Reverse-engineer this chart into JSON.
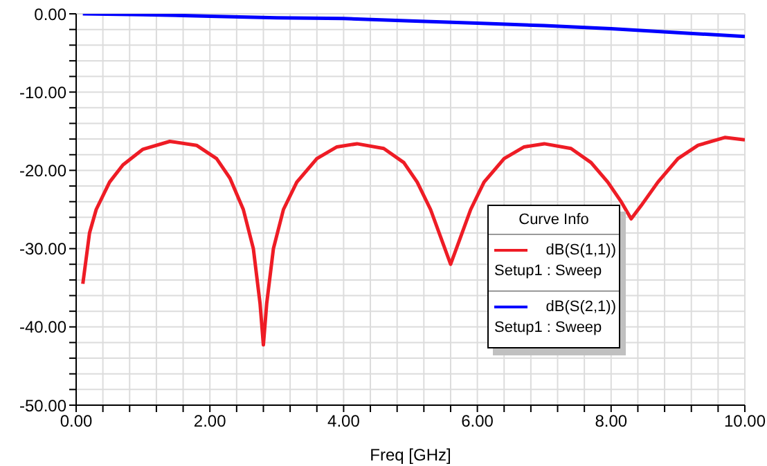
{
  "chart_data": {
    "type": "line",
    "xlabel": "Freq [GHz]",
    "legend_title": "Curve Info",
    "legend": "bottom right",
    "grid": true,
    "marker": "none",
    "line_style": "solid",
    "xlim": [
      0,
      10
    ],
    "ylim": [
      -50,
      0
    ],
    "xticks": [
      {
        "value": 0,
        "label": "0.00"
      },
      {
        "value": 0.4,
        "label": null
      },
      {
        "value": 0.8,
        "label": null
      },
      {
        "value": 1.2,
        "label": null
      },
      {
        "value": 1.6,
        "label": null
      },
      {
        "value": 2,
        "label": "2.00"
      },
      {
        "value": 2.4,
        "label": null
      },
      {
        "value": 2.8,
        "label": null
      },
      {
        "value": 3.2,
        "label": null
      },
      {
        "value": 3.6,
        "label": null
      },
      {
        "value": 4,
        "label": "4.00"
      },
      {
        "value": 4.4,
        "label": null
      },
      {
        "value": 4.8,
        "label": null
      },
      {
        "value": 5.2,
        "label": null
      },
      {
        "value": 5.6,
        "label": null
      },
      {
        "value": 6,
        "label": "6.00"
      },
      {
        "value": 6.4,
        "label": null
      },
      {
        "value": 6.8,
        "label": null
      },
      {
        "value": 7.2,
        "label": null
      },
      {
        "value": 7.6,
        "label": null
      },
      {
        "value": 8,
        "label": "8.00"
      },
      {
        "value": 8.4,
        "label": null
      },
      {
        "value": 8.8,
        "label": null
      },
      {
        "value": 9.2,
        "label": null
      },
      {
        "value": 9.6,
        "label": null
      },
      {
        "value": 10,
        "label": "10.00"
      }
    ],
    "yticks": [
      {
        "value": -50,
        "label": "-50.00"
      },
      {
        "value": -48,
        "label": null
      },
      {
        "value": -46,
        "label": null
      },
      {
        "value": -44,
        "label": null
      },
      {
        "value": -42,
        "label": null
      },
      {
        "value": -40,
        "label": "-40.00"
      },
      {
        "value": -38,
        "label": null
      },
      {
        "value": -36,
        "label": null
      },
      {
        "value": -34,
        "label": null
      },
      {
        "value": -32,
        "label": null
      },
      {
        "value": -30,
        "label": "-30.00"
      },
      {
        "value": -28,
        "label": null
      },
      {
        "value": -26,
        "label": null
      },
      {
        "value": -24,
        "label": null
      },
      {
        "value": -22,
        "label": null
      },
      {
        "value": -20,
        "label": "-20.00"
      },
      {
        "value": -18,
        "label": null
      },
      {
        "value": -16,
        "label": null
      },
      {
        "value": -14,
        "label": null
      },
      {
        "value": -12,
        "label": null
      },
      {
        "value": -10,
        "label": "-10.00"
      },
      {
        "value": -8,
        "label": null
      },
      {
        "value": -6,
        "label": null
      },
      {
        "value": -4,
        "label": null
      },
      {
        "value": -2,
        "label": null
      },
      {
        "value": 0,
        "label": "0.00"
      }
    ],
    "annotations": [
      "Setup1 : Sweep",
      "Setup1 : Sweep"
    ],
    "series": [
      {
        "name": "dB(S(1,1))",
        "color": "#ee1c25",
        "x": [
          0.1,
          0.2,
          0.3,
          0.5,
          0.7,
          1.0,
          1.4,
          1.8,
          2.1,
          2.3,
          2.5,
          2.65,
          2.75,
          2.8,
          2.85,
          2.95,
          3.1,
          3.3,
          3.6,
          3.9,
          4.2,
          4.6,
          4.9,
          5.1,
          5.3,
          5.45,
          5.6,
          5.75,
          5.9,
          6.1,
          6.4,
          6.7,
          7.0,
          7.4,
          7.7,
          7.95,
          8.15,
          8.3,
          8.45,
          8.7,
          9.0,
          9.3,
          9.7,
          10
        ],
        "values": [
          -34.5,
          -28,
          -25,
          -21.5,
          -19.3,
          -17.3,
          -16.3,
          -16.8,
          -18.5,
          -21,
          -25,
          -30,
          -37,
          -42.3,
          -37,
          -30,
          -25,
          -21.5,
          -18.5,
          -17,
          -16.6,
          -17.2,
          -19,
          -21.5,
          -25,
          -28.5,
          -32,
          -28.5,
          -25,
          -21.5,
          -18.5,
          -17,
          -16.6,
          -17.2,
          -19,
          -21.5,
          -24,
          -26.2,
          -24.5,
          -21.5,
          -18.5,
          -16.8,
          -15.8,
          -16.1
        ]
      },
      {
        "name": "dB(S(2,1))",
        "color": "#0000ff",
        "x": [
          0.1,
          1,
          2,
          3,
          4,
          5,
          6,
          7,
          8,
          9,
          10
        ],
        "values": [
          0,
          -0.1,
          -0.3,
          -0.5,
          -0.6,
          -0.9,
          -1.2,
          -1.5,
          -1.9,
          -2.4,
          -2.9
        ]
      }
    ]
  }
}
